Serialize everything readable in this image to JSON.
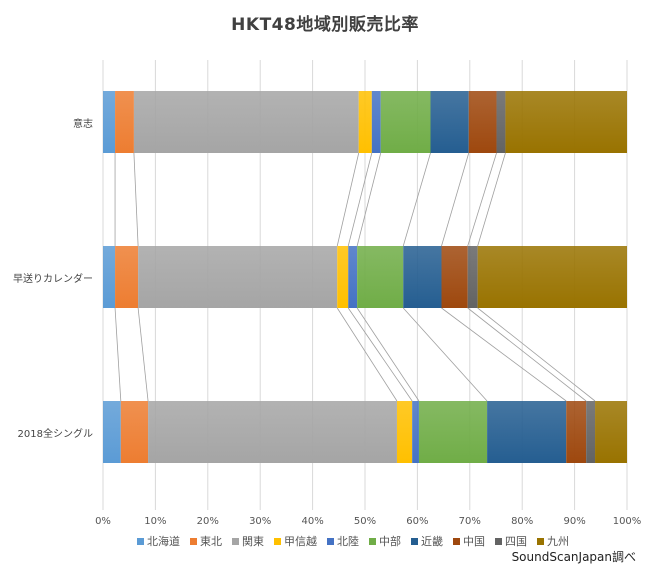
{
  "title": "HKT48地域別販売比率",
  "source": "SoundScanJapan調べ",
  "chart_data": {
    "type": "bar",
    "orientation": "horizontal",
    "stacked": "100%",
    "title": "HKT48地域別販売比率",
    "xlabel": "",
    "ylabel": "",
    "xlim": [
      0,
      100
    ],
    "x_ticks": [
      "0%",
      "10%",
      "20%",
      "30%",
      "40%",
      "50%",
      "60%",
      "70%",
      "80%",
      "90%",
      "100%"
    ],
    "grid": true,
    "series_connectors": true,
    "legend_position": "bottom",
    "categories": [
      "意志",
      "早送りカレンダー",
      "2018全シングル"
    ],
    "series": [
      {
        "name": "北海道",
        "color": "#5B9BD5",
        "values": [
          2.3,
          2.3,
          3.4
        ]
      },
      {
        "name": "東北",
        "color": "#ED7D31",
        "values": [
          3.6,
          4.4,
          5.2
        ]
      },
      {
        "name": "関東",
        "color": "#A5A5A5",
        "values": [
          42.9,
          38.0,
          47.5
        ]
      },
      {
        "name": "甲信越",
        "color": "#FFC000",
        "values": [
          2.5,
          2.1,
          2.9
        ]
      },
      {
        "name": "北陸",
        "color": "#4472C4",
        "values": [
          1.7,
          1.7,
          1.3
        ]
      },
      {
        "name": "中部",
        "color": "#70AD47",
        "values": [
          9.5,
          8.8,
          13.0
        ]
      },
      {
        "name": "近畿",
        "color": "#255E91",
        "values": [
          7.3,
          7.3,
          15.1
        ]
      },
      {
        "name": "中国",
        "color": "#9E480E",
        "values": [
          5.3,
          5.0,
          3.8
        ]
      },
      {
        "name": "四国",
        "color": "#636363",
        "values": [
          1.7,
          1.9,
          1.7
        ]
      },
      {
        "name": "九州",
        "color": "#997300",
        "values": [
          23.2,
          28.5,
          6.1
        ]
      }
    ]
  }
}
